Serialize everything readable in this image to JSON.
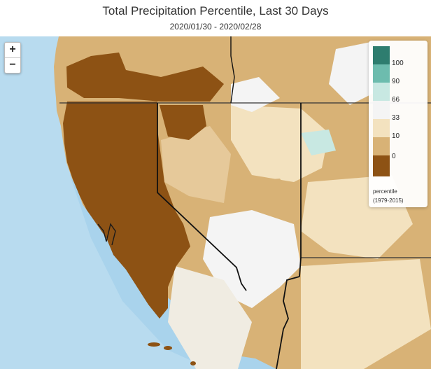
{
  "title": "Total Precipitation Percentile, Last 30 Days",
  "subtitle": "2020/01/30 - 2020/02/28",
  "zoom": {
    "in_label": "+",
    "out_label": "−"
  },
  "legend": {
    "title": "percentile",
    "period": "(1979-2015)",
    "bins": [
      {
        "label": "100",
        "color": "#2e7d6f"
      },
      {
        "label": "90",
        "color": "#6dbcae"
      },
      {
        "label": "66",
        "color": "#c8e8e2"
      },
      {
        "label": "33",
        "color": "#f4f4f4"
      },
      {
        "label": "10",
        "color": "#f3e2bf"
      },
      {
        "label": "0",
        "color": "#d8b276"
      },
      {
        "label": "",
        "color": "#8d5214"
      }
    ]
  },
  "map_colors": {
    "ocean": "#a9d3ec",
    "coast_ocean": "#c4e2f3",
    "p0_10": "#8d5214",
    "p10_33": "#d8b276",
    "p33_66": "#f3e2bf",
    "p66_90": "#f4f4f4",
    "p90": "#c8e8e2",
    "border": "#111111",
    "graticule": "#333333"
  }
}
